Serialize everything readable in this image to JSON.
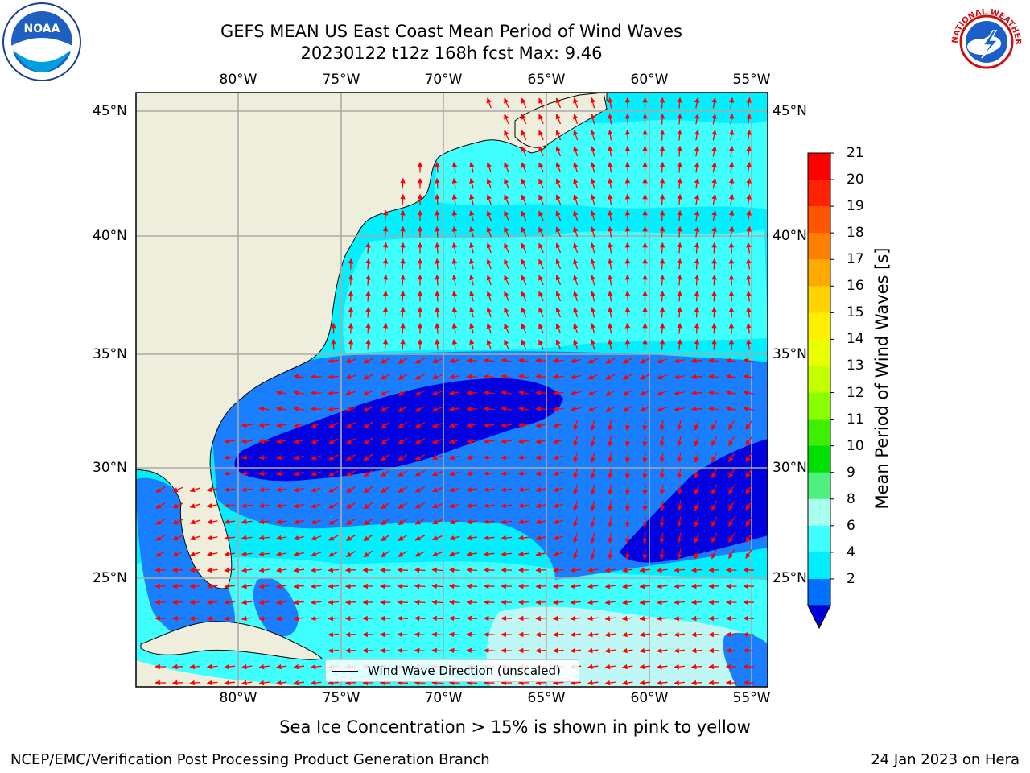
{
  "header": {
    "title_line1": "GEFS MEAN US East Coast Mean Period of Wind Waves",
    "title_line2": "20230122 t12z 168h fcst   Max: 9.46"
  },
  "map": {
    "lon_ticks": [
      "80°W",
      "75°W",
      "70°W",
      "65°W",
      "60°W",
      "55°W"
    ],
    "lat_ticks": [
      "45°N",
      "40°N",
      "35°N",
      "30°N",
      "25°N"
    ],
    "lon_range": [
      -85,
      -54.5
    ],
    "lat_range": [
      20,
      46
    ],
    "grid": true,
    "land_color": "#efeedc",
    "legend_label": "Wind Wave Direction (unscaled)"
  },
  "colorbar": {
    "label": "Mean Period of Wind Waves [s]",
    "ticks": [
      "21",
      "20",
      "19",
      "18",
      "17",
      "16",
      "15",
      "14",
      "13",
      "12",
      "11",
      "10",
      "9",
      "8",
      "6",
      "4",
      "2"
    ],
    "colors": [
      "#ff0000",
      "#ff2200",
      "#ff5500",
      "#ff8000",
      "#ffaa00",
      "#ffd200",
      "#fff000",
      "#eaff00",
      "#c4ff00",
      "#8aff00",
      "#3cf000",
      "#00e000",
      "#50f080",
      "#a8ffee",
      "#40ffff",
      "#00eeff",
      "#0070ff"
    ],
    "min_color": "#0000dd"
  },
  "colors": {
    "very_light": "#bff7f4",
    "light": "#40ffff",
    "cyan": "#00f0ff",
    "blue": "#1a7fff",
    "dark_blue": "#0000e0",
    "arrow": "#ff0000"
  },
  "footer": {
    "note": "Sea Ice Concentration > 15% is shown in pink to yellow",
    "credit": "NCEP/EMC/Verification Post Processing Product Generation Branch",
    "date": "24 Jan 2023 on Hera"
  },
  "logos": {
    "left": "noaa-logo",
    "left_text": "NOAA",
    "right": "nws-logo",
    "right_text": "NATIONAL WEATHER SERVICE"
  }
}
